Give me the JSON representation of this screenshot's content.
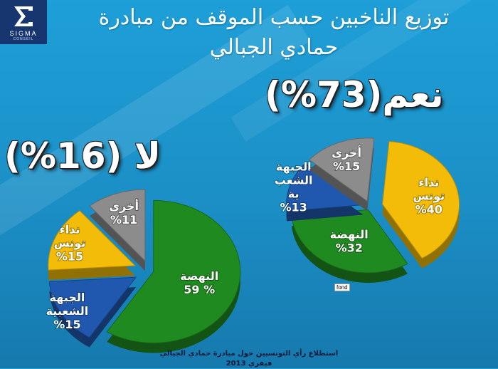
{
  "logo": {
    "word": "SIGMA",
    "sub": "CONSEIL"
  },
  "title": {
    "line1": "توزيع الناخبين حسب الموقف من مبادرة",
    "line2": "حمادي الجبالي"
  },
  "big": {
    "yes": "نعم(73%)",
    "no": "لا (16%)"
  },
  "colors": {
    "green": "#1f8a1f",
    "yellow": "#f2bc08",
    "blue": "#1f58ae",
    "grey": "#8c8c8c"
  },
  "chart_data": [
    {
      "type": "pie",
      "title": "نعم(73%)",
      "slices": [
        {
          "label": [
            "نداء",
            "تونس"
          ],
          "value_text": "%40",
          "value": 40,
          "color": "#f2bc08"
        },
        {
          "label": [
            "النهضة"
          ],
          "value_text": "%32",
          "value": 32,
          "color": "#1f8a1f"
        },
        {
          "label": [
            "الجبهة",
            "الشعب",
            "ية"
          ],
          "value_text": "%13",
          "value": 13,
          "color": "#1f58ae"
        },
        {
          "label": [
            "أخرى"
          ],
          "value_text": "%15",
          "value": 15,
          "color": "#8c8c8c"
        }
      ]
    },
    {
      "type": "pie",
      "title": "لا (16%)",
      "slices": [
        {
          "label": [
            "النهضة"
          ],
          "value_text": "59 %",
          "value": 59,
          "color": "#1f8a1f"
        },
        {
          "label": [
            "الجبهة",
            "الشعبية"
          ],
          "value_text": "%15",
          "value": 15,
          "color": "#1f58ae"
        },
        {
          "label": [
            "نداء",
            "تونس"
          ],
          "value_text": "%15",
          "value": 15,
          "color": "#f2bc08"
        },
        {
          "label": [
            "أخرى"
          ],
          "value_text": "%11",
          "value": 11,
          "color": "#8c8c8c"
        }
      ]
    }
  ],
  "tag": "fond",
  "footer": {
    "line1": "استطلاع رأي  التونسيين حول مبادرة حمادي الجبالي",
    "line2": "فيفري 2013"
  }
}
